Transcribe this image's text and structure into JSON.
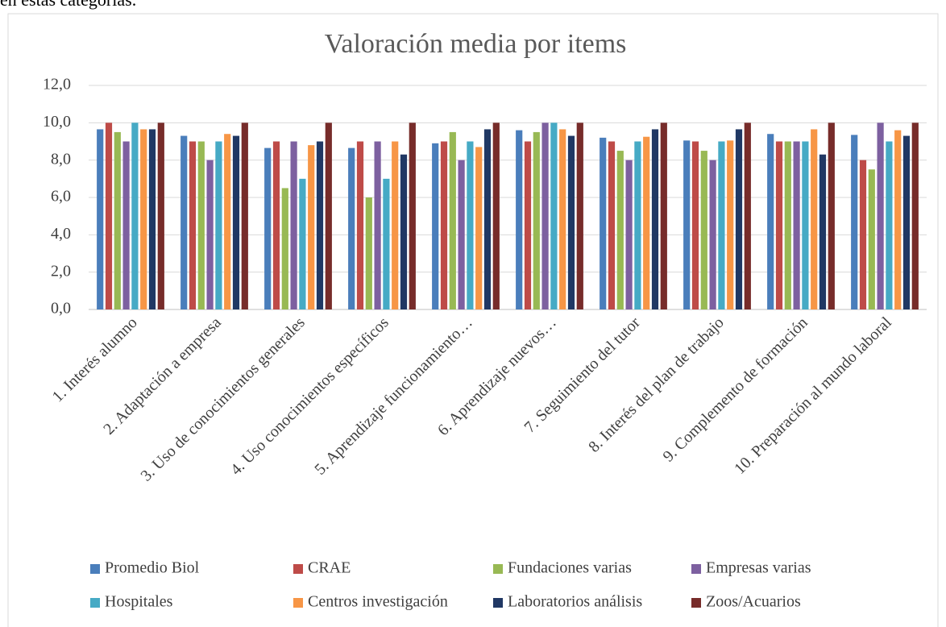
{
  "document_text": "en estas categorías.",
  "chart_data": {
    "type": "bar",
    "title": "Valoración media por items",
    "categories": [
      "1. Interés alumno",
      "2. Adaptación a empresa",
      "3. Uso de conocimientos generales",
      "4. Uso conocimientos específicos",
      "5. Aprendizaje funcionamiento…",
      "6. Aprendizaje nuevos…",
      "7. Seguimiento del tutor",
      "8. Interés del plan de trabajo",
      "9. Complemento de formación",
      "10. Preparación al mundo laboral"
    ],
    "series": [
      {
        "name": "Promedio Biol",
        "color": "#4a7ebb",
        "values": [
          9.65,
          9.3,
          8.65,
          8.65,
          8.9,
          9.6,
          9.2,
          9.05,
          9.4,
          9.35
        ]
      },
      {
        "name": "CRAE",
        "color": "#be4b48",
        "values": [
          10,
          9,
          9,
          9,
          9,
          9,
          9,
          9,
          9,
          8
        ]
      },
      {
        "name": "Fundaciones varias",
        "color": "#98b954",
        "values": [
          9.5,
          9,
          6.5,
          6,
          9.5,
          9.5,
          8.5,
          8.5,
          9,
          7.5
        ]
      },
      {
        "name": "Empresas varias",
        "color": "#7d60a0",
        "values": [
          9,
          8,
          9,
          9,
          8,
          10,
          8,
          8,
          9,
          10
        ]
      },
      {
        "name": "Hospitales",
        "color": "#46aac5",
        "values": [
          10,
          9,
          7,
          7,
          9,
          10,
          9,
          9,
          9,
          9
        ]
      },
      {
        "name": "Centros investigación",
        "color": "#f79646",
        "values": [
          9.65,
          9.4,
          8.8,
          9,
          8.7,
          9.65,
          9.25,
          9.05,
          9.65,
          9.6
        ]
      },
      {
        "name": "Laboratorios análisis",
        "color": "#203864",
        "values": [
          9.65,
          9.3,
          9,
          8.3,
          9.65,
          9.3,
          9.65,
          9.65,
          8.3,
          9.3
        ]
      },
      {
        "name": "Zoos/Acuarios",
        "color": "#772c2a",
        "values": [
          10,
          10,
          10,
          10,
          10,
          10,
          10,
          10,
          10,
          10
        ]
      }
    ],
    "ylim": [
      0,
      12
    ],
    "yticks": [
      {
        "value": 0,
        "label": "0,0"
      },
      {
        "value": 2,
        "label": "2,0"
      },
      {
        "value": 4,
        "label": "4,0"
      },
      {
        "value": 6,
        "label": "6,0"
      },
      {
        "value": 8,
        "label": "8,0"
      },
      {
        "value": 10,
        "label": "10,0"
      },
      {
        "value": 12,
        "label": "12,0"
      }
    ],
    "grid": true
  }
}
